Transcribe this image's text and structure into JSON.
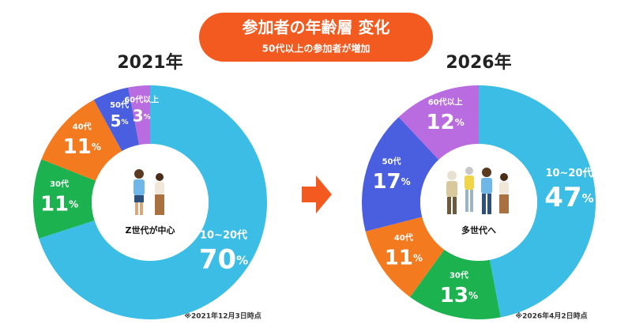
{
  "header": {
    "title": "参加者の年齢層 変化",
    "subtitle": "50代以上の参加者が増加"
  },
  "chart_data": [
    {
      "type": "donut",
      "title": "2021年",
      "center_label": "Z世代が中心",
      "note": "※2021年12月3日時点",
      "categories": [
        "10~20代",
        "30代",
        "40代",
        "50代",
        "60代以上"
      ],
      "values": [
        70,
        11,
        11,
        5,
        3
      ],
      "value_labels": [
        "70%",
        "11%",
        "11%",
        "5%",
        "3%"
      ],
      "colors": [
        "#3bbde6",
        "#1bb24f",
        "#f47a20",
        "#4a5fe0",
        "#b96be0"
      ]
    },
    {
      "type": "donut",
      "title": "2026年",
      "center_label": "多世代へ",
      "note": "※2026年4月2日時点",
      "categories": [
        "10~20代",
        "30代",
        "40代",
        "50代",
        "60代以上"
      ],
      "values": [
        47,
        13,
        11,
        17,
        12
      ],
      "value_labels": [
        "47%",
        "13%",
        "11%",
        "17%",
        "12%"
      ],
      "colors": [
        "#3bbde6",
        "#1bb24f",
        "#f47a20",
        "#4a5fe0",
        "#b96be0"
      ]
    }
  ]
}
